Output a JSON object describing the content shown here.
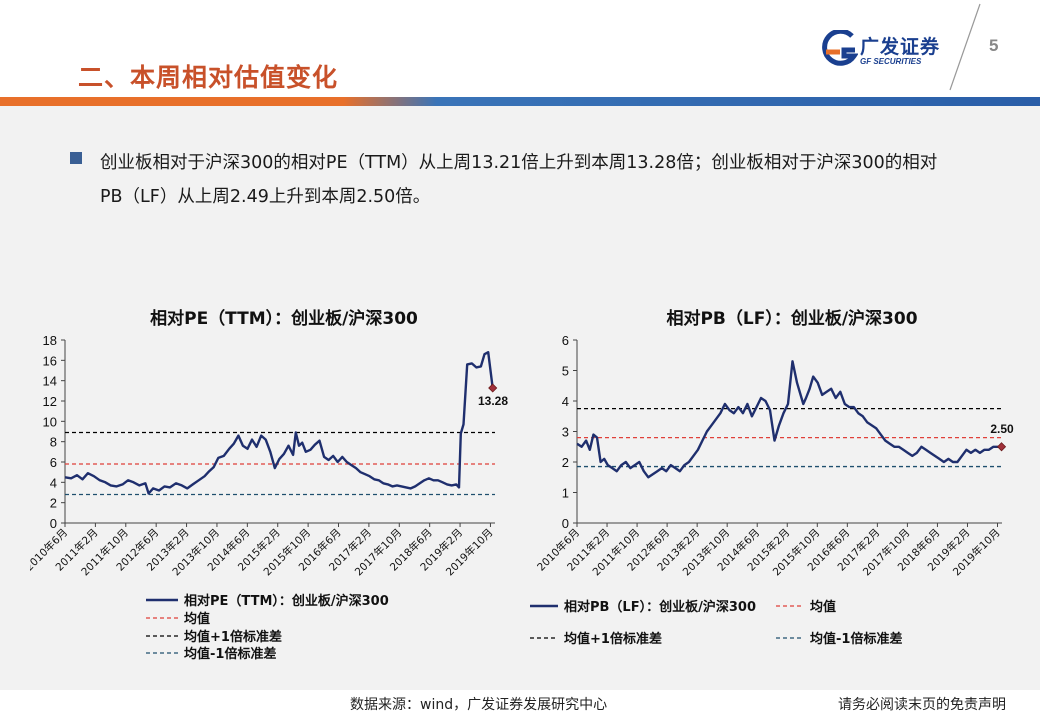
{
  "header": {
    "title": "二、本周相对估值变化",
    "logo_cn": "广发证券",
    "logo_en": "GF SECURITIES",
    "page_number": "5"
  },
  "bullet": {
    "text": "创业板相对于沪深300的相对PE（TTM）从上周13.21倍上升到本周13.28倍；创业板相对于沪深300的相对PB（LF）从上周2.49上升到本周2.50倍。"
  },
  "footer": {
    "source": "数据来源：wind，广发证券发展研究中心",
    "disclaimer": "请务必阅读末页的免责声明"
  },
  "colors": {
    "title": "#c8512a",
    "series": "#1f2f6e",
    "mean": "#e0403a",
    "std": "#000000",
    "minus_std": "#1f4f6e",
    "band_orange": "#e8702a",
    "band_blue": "#3a74b8",
    "logo_blue": "#1a3f8f"
  },
  "chart_data": [
    {
      "type": "line",
      "title": "相对PE（TTM）：创业板/沪深300",
      "ylim": [
        0,
        18
      ],
      "yticks": [
        0,
        2,
        4,
        6,
        8,
        10,
        12,
        14,
        16,
        18
      ],
      "xlim": [
        2010.417,
        2019.85
      ],
      "xticks": [
        "2010年6月",
        "2011年2月",
        "2011年10月",
        "2012年6月",
        "2013年2月",
        "2013年10月",
        "2014年6月",
        "2015年2月",
        "2015年10月",
        "2016年6月",
        "2017年2月",
        "2017年10月",
        "2018年6月",
        "2019年2月",
        "2019年10月"
      ],
      "grid": false,
      "legend_position": "bottom",
      "series": [
        {
          "name": "相对PE（TTM）：创业板/沪深300",
          "x": [
            2010.42,
            2010.55,
            2010.68,
            2010.8,
            2010.92,
            2011.05,
            2011.18,
            2011.3,
            2011.42,
            2011.55,
            2011.68,
            2011.8,
            2011.92,
            2012.05,
            2012.18,
            2012.25,
            2012.35,
            2012.48,
            2012.6,
            2012.72,
            2012.85,
            2012.98,
            2013.1,
            2013.22,
            2013.35,
            2013.48,
            2013.58,
            2013.68,
            2013.78,
            2013.9,
            2014.02,
            2014.12,
            2014.22,
            2014.32,
            2014.42,
            2014.52,
            2014.62,
            2014.72,
            2014.82,
            2014.92,
            2015.02,
            2015.12,
            2015.22,
            2015.32,
            2015.42,
            2015.48,
            2015.55,
            2015.62,
            2015.7,
            2015.8,
            2015.9,
            2016.0,
            2016.1,
            2016.2,
            2016.3,
            2016.4,
            2016.5,
            2016.6,
            2016.7,
            2016.8,
            2016.9,
            2017.0,
            2017.1,
            2017.2,
            2017.3,
            2017.4,
            2017.5,
            2017.6,
            2017.7,
            2017.8,
            2017.9,
            2018.0,
            2018.1,
            2018.2,
            2018.3,
            2018.4,
            2018.5,
            2018.6,
            2018.7,
            2018.8,
            2018.9,
            2019.0,
            2019.06,
            2019.1,
            2019.16,
            2019.24,
            2019.34,
            2019.44,
            2019.54,
            2019.62,
            2019.7,
            2019.8
          ],
          "y": [
            4.5,
            4.4,
            4.7,
            4.3,
            4.9,
            4.6,
            4.2,
            4.0,
            3.7,
            3.6,
            3.8,
            4.2,
            4.0,
            3.7,
            3.9,
            2.9,
            3.4,
            3.2,
            3.6,
            3.5,
            3.9,
            3.7,
            3.4,
            3.8,
            4.2,
            4.6,
            5.1,
            5.5,
            6.4,
            6.6,
            7.3,
            7.8,
            8.6,
            7.6,
            7.3,
            8.2,
            7.5,
            8.6,
            8.2,
            7.0,
            5.4,
            6.3,
            6.8,
            7.6,
            6.7,
            8.9,
            7.6,
            7.9,
            7.0,
            7.2,
            7.7,
            8.1,
            6.5,
            6.2,
            6.6,
            6.0,
            6.5,
            6.0,
            5.7,
            5.4,
            5.0,
            4.8,
            4.6,
            4.3,
            4.2,
            3.9,
            3.8,
            3.6,
            3.7,
            3.6,
            3.5,
            3.4,
            3.6,
            3.9,
            4.2,
            4.4,
            4.2,
            4.2,
            4.0,
            3.8,
            3.7,
            3.8,
            3.5,
            8.8,
            9.7,
            15.6,
            15.7,
            15.3,
            15.4,
            16.6,
            16.8,
            13.28
          ]
        }
      ],
      "reference_lines": [
        {
          "name": "均值",
          "value": 5.8
        },
        {
          "name": "均值+1倍标准差",
          "value": 8.9
        },
        {
          "name": "均值-1倍标准差",
          "value": 2.8
        }
      ],
      "annotation": "13.28",
      "legend": [
        "相对PE（TTM）：创业板/沪深300",
        "均值",
        "均值+1倍标准差",
        "均值-1倍标准差"
      ]
    },
    {
      "type": "line",
      "title": "相对PB（LF）：创业板/沪深300",
      "ylim": [
        0,
        6
      ],
      "yticks": [
        0,
        1,
        2,
        3,
        4,
        5,
        6
      ],
      "xlim": [
        2010.417,
        2019.85
      ],
      "xticks": [
        "2010年6月",
        "2011年2月",
        "2011年10月",
        "2012年6月",
        "2013年2月",
        "2013年10月",
        "2014年6月",
        "2015年2月",
        "2015年10月",
        "2016年6月",
        "2017年2月",
        "2017年10月",
        "2018年6月",
        "2019年2月",
        "2019年10月"
      ],
      "grid": false,
      "legend_position": "bottom",
      "series": [
        {
          "name": "相对PB（LF）：创业板/沪深300",
          "x": [
            2010.42,
            2010.52,
            2010.62,
            2010.7,
            2010.78,
            2010.86,
            2010.94,
            2011.02,
            2011.1,
            2011.2,
            2011.3,
            2011.4,
            2011.5,
            2011.6,
            2011.7,
            2011.8,
            2011.9,
            2012.0,
            2012.1,
            2012.2,
            2012.3,
            2012.4,
            2012.5,
            2012.6,
            2012.7,
            2012.8,
            2012.9,
            2013.0,
            2013.1,
            2013.2,
            2013.3,
            2013.4,
            2013.5,
            2013.6,
            2013.7,
            2013.8,
            2013.9,
            2014.0,
            2014.1,
            2014.2,
            2014.3,
            2014.4,
            2014.5,
            2014.6,
            2014.7,
            2014.8,
            2014.9,
            2015.0,
            2015.1,
            2015.2,
            2015.3,
            2015.38,
            2015.44,
            2015.5,
            2015.58,
            2015.66,
            2015.76,
            2015.86,
            2015.96,
            2016.06,
            2016.16,
            2016.26,
            2016.36,
            2016.46,
            2016.56,
            2016.66,
            2016.76,
            2016.86,
            2016.96,
            2017.06,
            2017.16,
            2017.26,
            2017.36,
            2017.46,
            2017.56,
            2017.66,
            2017.76,
            2017.86,
            2017.96,
            2018.06,
            2018.16,
            2018.26,
            2018.36,
            2018.46,
            2018.56,
            2018.66,
            2018.76,
            2018.86,
            2018.96,
            2019.06,
            2019.16,
            2019.26,
            2019.36,
            2019.46,
            2019.56,
            2019.66,
            2019.76,
            2019.84
          ],
          "y": [
            2.6,
            2.5,
            2.7,
            2.4,
            2.9,
            2.8,
            2.0,
            2.1,
            1.9,
            1.8,
            1.7,
            1.9,
            2.0,
            1.8,
            1.9,
            2.0,
            1.7,
            1.5,
            1.6,
            1.7,
            1.8,
            1.7,
            1.9,
            1.8,
            1.7,
            1.9,
            2.0,
            2.2,
            2.4,
            2.7,
            3.0,
            3.2,
            3.4,
            3.6,
            3.9,
            3.7,
            3.6,
            3.8,
            3.6,
            3.9,
            3.5,
            3.8,
            4.1,
            4.0,
            3.7,
            2.7,
            3.2,
            3.6,
            3.9,
            5.3,
            4.6,
            4.2,
            3.9,
            4.1,
            4.4,
            4.8,
            4.6,
            4.2,
            4.3,
            4.4,
            4.1,
            4.3,
            3.9,
            3.8,
            3.8,
            3.6,
            3.5,
            3.3,
            3.2,
            3.1,
            2.9,
            2.7,
            2.6,
            2.5,
            2.5,
            2.4,
            2.3,
            2.2,
            2.3,
            2.5,
            2.4,
            2.3,
            2.2,
            2.1,
            2.0,
            2.1,
            2.0,
            2.0,
            2.2,
            2.4,
            2.3,
            2.4,
            2.3,
            2.4,
            2.4,
            2.5,
            2.5,
            2.5
          ]
        }
      ],
      "reference_lines": [
        {
          "name": "均值",
          "value": 2.8
        },
        {
          "name": "均值+1倍标准差",
          "value": 3.75
        },
        {
          "name": "均值-1倍标准差",
          "value": 1.85
        }
      ],
      "annotation": "2.50",
      "legend": [
        "相对PB（LF）：创业板/沪深300",
        "均值",
        "均值+1倍标准差",
        "均值-1倍标准差"
      ]
    }
  ]
}
